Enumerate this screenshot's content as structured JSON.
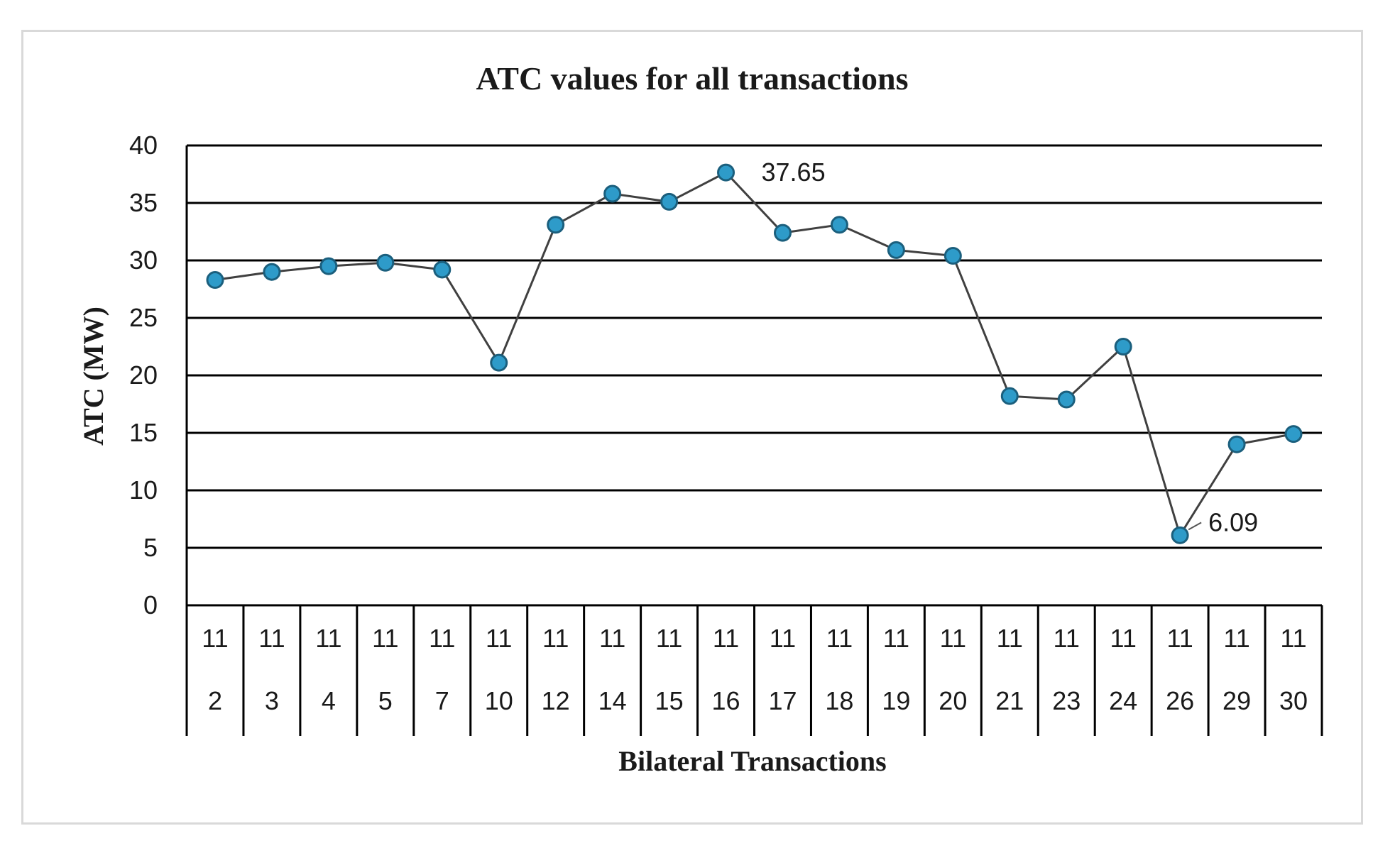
{
  "chart_data": {
    "type": "line",
    "title": "ATC values for all transactions",
    "xlabel": "Bilateral Transactions",
    "ylabel": "ATC (MW)",
    "ylim": [
      0,
      40
    ],
    "yticks": [
      "0",
      "5",
      "10",
      "15",
      "20",
      "25",
      "30",
      "35",
      "40"
    ],
    "grid": "horizontal",
    "categories": [
      {
        "from": "11",
        "to": "2"
      },
      {
        "from": "11",
        "to": "3"
      },
      {
        "from": "11",
        "to": "4"
      },
      {
        "from": "11",
        "to": "5"
      },
      {
        "from": "11",
        "to": "7"
      },
      {
        "from": "11",
        "to": "10"
      },
      {
        "from": "11",
        "to": "12"
      },
      {
        "from": "11",
        "to": "14"
      },
      {
        "from": "11",
        "to": "15"
      },
      {
        "from": "11",
        "to": "16"
      },
      {
        "from": "11",
        "to": "17"
      },
      {
        "from": "11",
        "to": "18"
      },
      {
        "from": "11",
        "to": "19"
      },
      {
        "from": "11",
        "to": "20"
      },
      {
        "from": "11",
        "to": "21"
      },
      {
        "from": "11",
        "to": "23"
      },
      {
        "from": "11",
        "to": "24"
      },
      {
        "from": "11",
        "to": "26"
      },
      {
        "from": "11",
        "to": "29"
      },
      {
        "from": "11",
        "to": "30"
      }
    ],
    "values": [
      28.3,
      29.0,
      29.5,
      29.8,
      29.2,
      21.1,
      33.1,
      35.8,
      35.1,
      37.65,
      32.4,
      33.1,
      30.9,
      30.4,
      18.2,
      17.9,
      22.5,
      6.09,
      14.0,
      14.9
    ],
    "annotations": [
      {
        "index": 9,
        "text": "37.65"
      },
      {
        "index": 17,
        "text": "6.09"
      }
    ],
    "colors": {
      "line": "#404040",
      "marker_fill": "#2e9bc9",
      "marker_stroke": "#1b5f7d",
      "grid": "#000000"
    }
  }
}
